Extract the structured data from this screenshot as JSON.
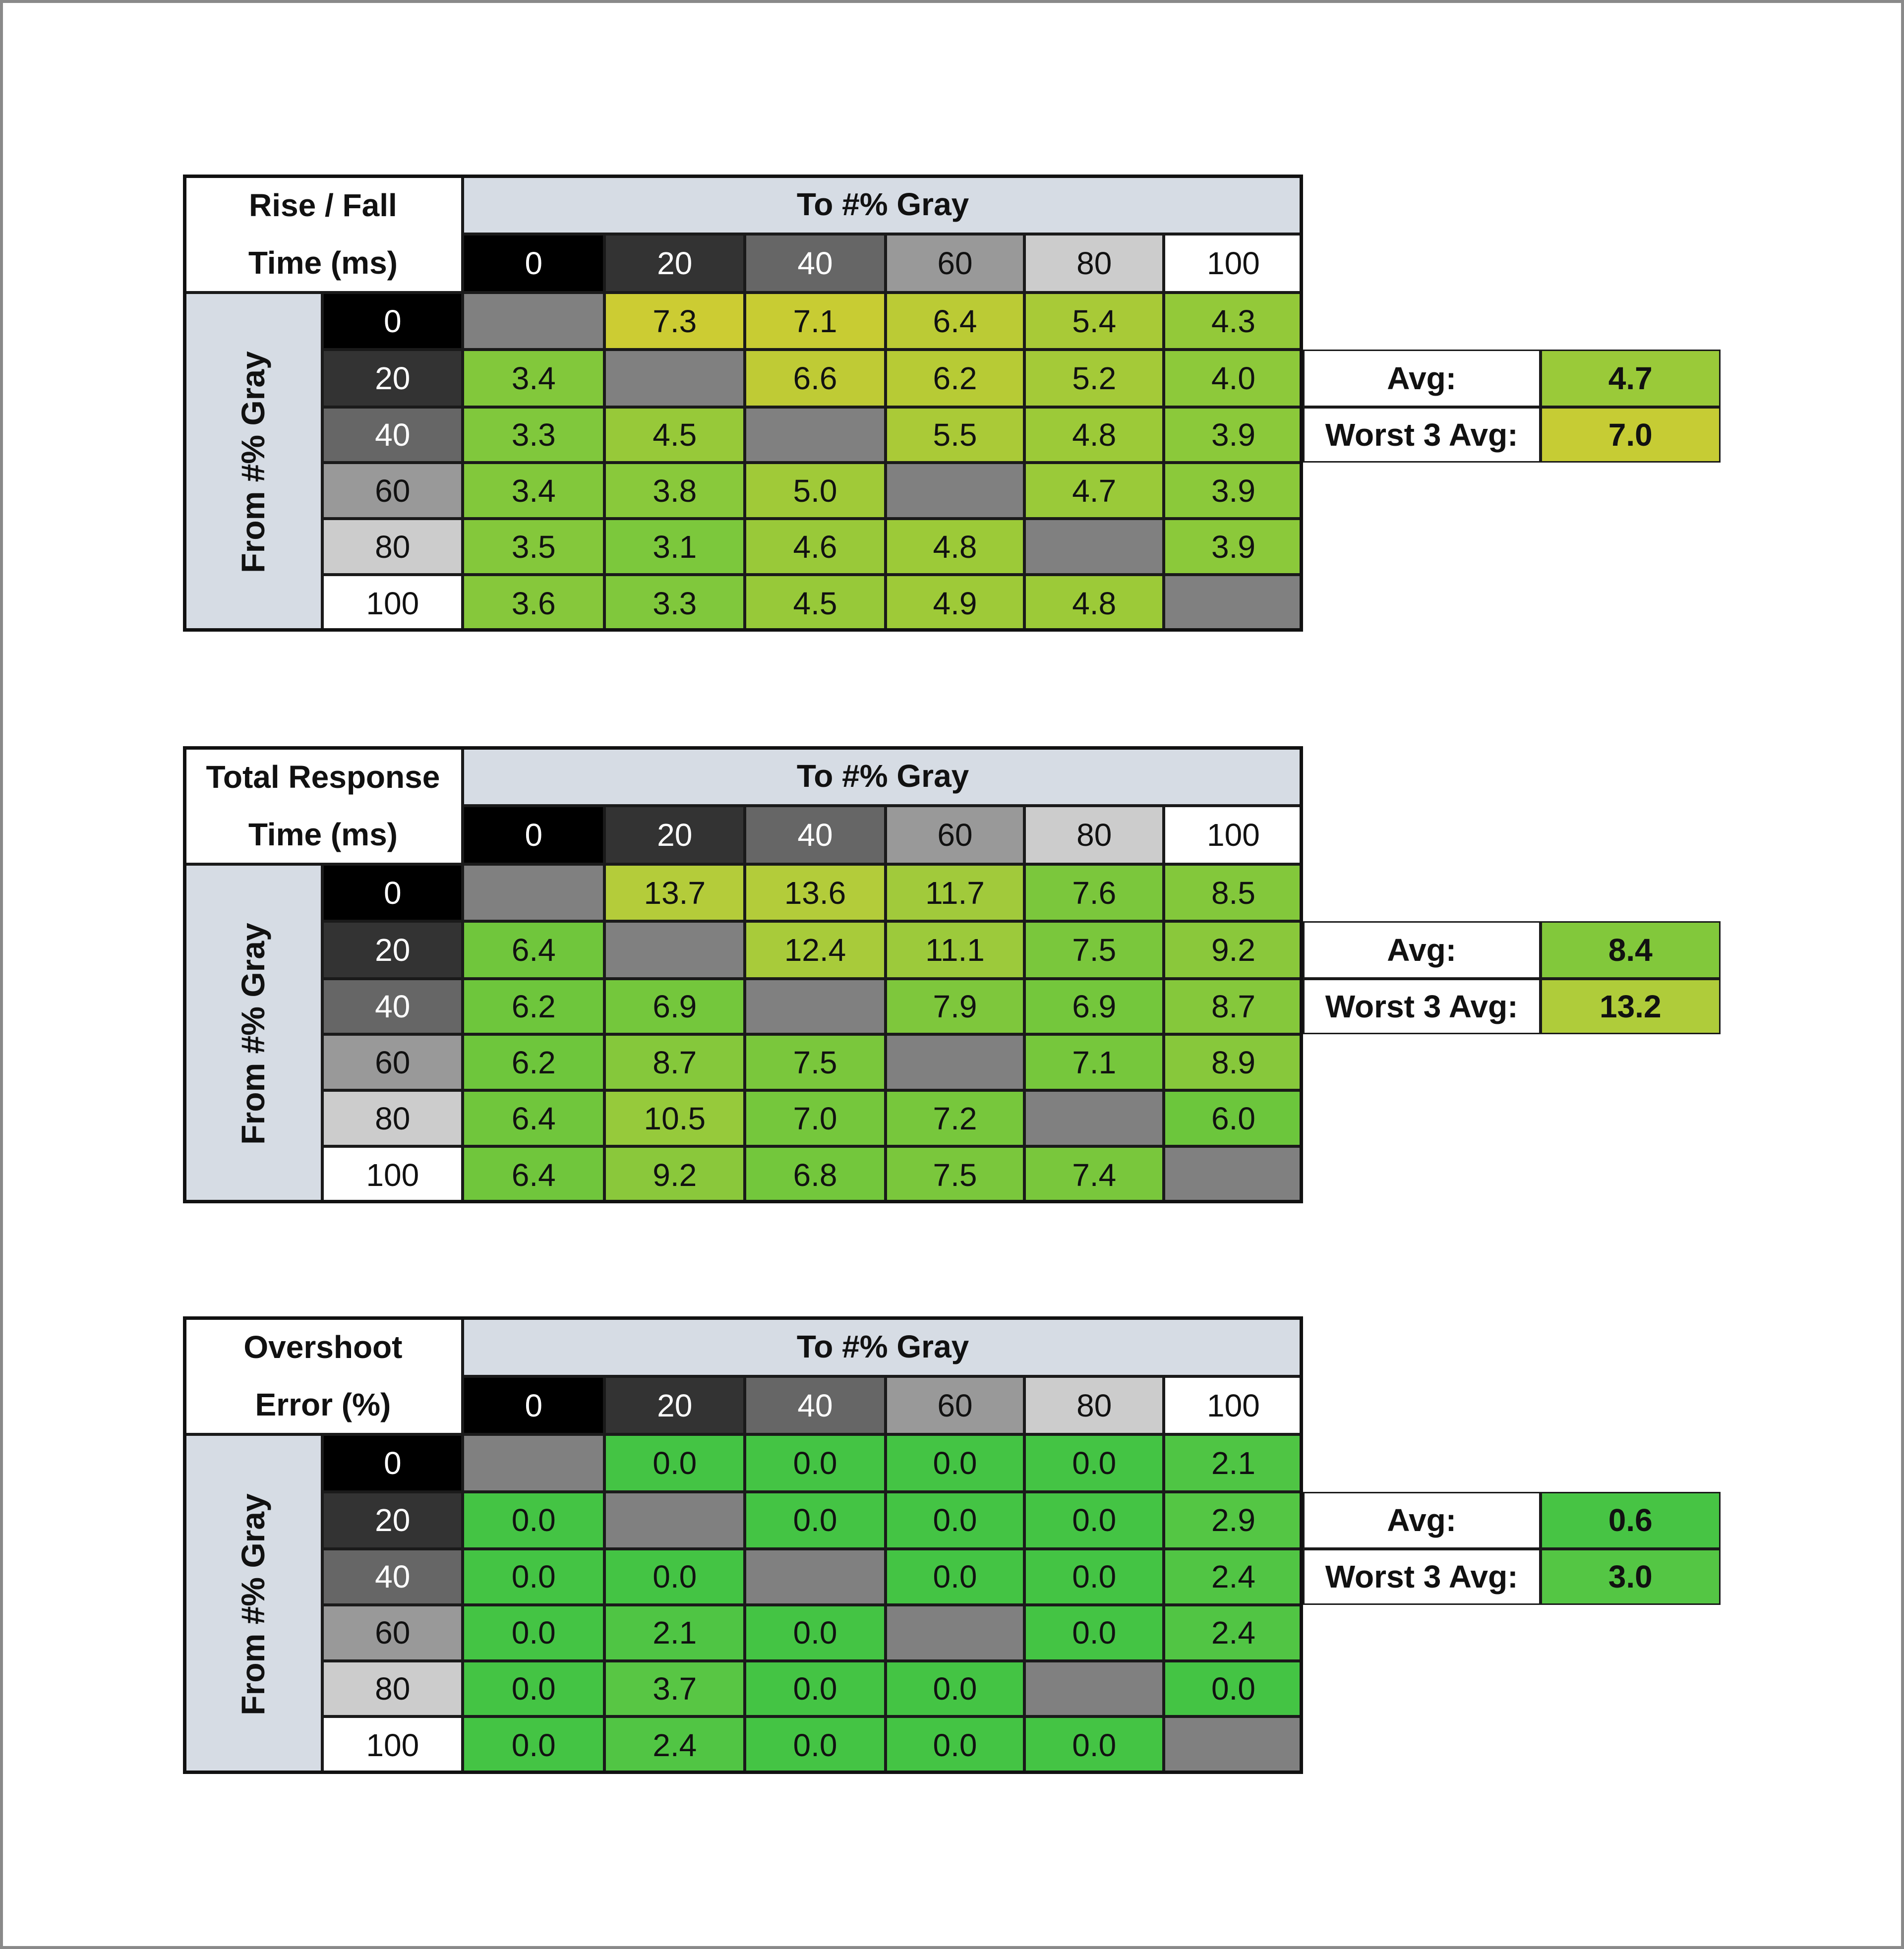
{
  "tables": [
    {
      "corner": [
        "Rise / Fall",
        "Time (ms)"
      ],
      "to_header": "To #% Gray",
      "from_header": "From #% Gray",
      "columns": [
        "0",
        "20",
        "40",
        "60",
        "80",
        "100"
      ],
      "colors": [
        "#7cc83c",
        "#cccc33"
      ],
      "rows": [
        {
          "label": "0",
          "cells": [
            null,
            "7.3",
            "7.1",
            "6.4",
            "5.4",
            "4.3"
          ]
        },
        {
          "label": "20",
          "cells": [
            "3.4",
            null,
            "6.6",
            "6.2",
            "5.2",
            "4.0"
          ]
        },
        {
          "label": "40",
          "cells": [
            "3.3",
            "4.5",
            null,
            "5.5",
            "4.8",
            "3.9"
          ]
        },
        {
          "label": "60",
          "cells": [
            "3.4",
            "3.8",
            "5.0",
            null,
            "4.7",
            "3.9"
          ]
        },
        {
          "label": "80",
          "cells": [
            "3.5",
            "3.1",
            "4.6",
            "4.8",
            null,
            "3.9"
          ]
        },
        {
          "label": "100",
          "cells": [
            "3.6",
            "3.3",
            "4.5",
            "4.9",
            "4.8",
            null
          ]
        }
      ],
      "summary": [
        {
          "label": "Avg:",
          "value": "4.7"
        },
        {
          "label": "Worst 3 Avg:",
          "value": "7.0"
        }
      ]
    },
    {
      "corner": [
        "Total Response",
        "Time (ms)"
      ],
      "to_header": "To #% Gray",
      "from_header": "From #% Gray",
      "columns": [
        "0",
        "20",
        "40",
        "60",
        "80",
        "100"
      ],
      "colors": [
        "#6cc63c",
        "#b4cc3a"
      ],
      "rows": [
        {
          "label": "0",
          "cells": [
            null,
            "13.7",
            "13.6",
            "11.7",
            "7.6",
            "8.5"
          ]
        },
        {
          "label": "20",
          "cells": [
            "6.4",
            null,
            "12.4",
            "11.1",
            "7.5",
            "9.2"
          ]
        },
        {
          "label": "40",
          "cells": [
            "6.2",
            "6.9",
            null,
            "7.9",
            "6.9",
            "8.7"
          ]
        },
        {
          "label": "60",
          "cells": [
            "6.2",
            "8.7",
            "7.5",
            null,
            "7.1",
            "8.9"
          ]
        },
        {
          "label": "80",
          "cells": [
            "6.4",
            "10.5",
            "7.0",
            "7.2",
            null,
            "6.0"
          ]
        },
        {
          "label": "100",
          "cells": [
            "6.4",
            "9.2",
            "6.8",
            "7.5",
            "7.4",
            null
          ]
        }
      ],
      "summary": [
        {
          "label": "Avg:",
          "value": "8.4"
        },
        {
          "label": "Worst 3 Avg:",
          "value": "13.2"
        }
      ]
    },
    {
      "corner": [
        "Overshoot",
        "Error (%)"
      ],
      "to_header": "To #% Gray",
      "from_header": "From #% Gray",
      "columns": [
        "0",
        "20",
        "40",
        "60",
        "80",
        "100"
      ],
      "colors": [
        "#44c444",
        "#58c644"
      ],
      "rows": [
        {
          "label": "0",
          "cells": [
            null,
            "0.0",
            "0.0",
            "0.0",
            "0.0",
            "2.1"
          ]
        },
        {
          "label": "20",
          "cells": [
            "0.0",
            null,
            "0.0",
            "0.0",
            "0.0",
            "2.9"
          ]
        },
        {
          "label": "40",
          "cells": [
            "0.0",
            "0.0",
            null,
            "0.0",
            "0.0",
            "2.4"
          ]
        },
        {
          "label": "60",
          "cells": [
            "0.0",
            "2.1",
            "0.0",
            null,
            "0.0",
            "2.4"
          ]
        },
        {
          "label": "80",
          "cells": [
            "0.0",
            "3.7",
            "0.0",
            "0.0",
            null,
            "0.0"
          ]
        },
        {
          "label": "100",
          "cells": [
            "0.0",
            "2.4",
            "0.0",
            "0.0",
            "0.0",
            null
          ]
        }
      ],
      "summary": [
        {
          "label": "Avg:",
          "value": "0.6"
        },
        {
          "label": "Worst 3 Avg:",
          "value": "3.0"
        }
      ]
    }
  ]
}
